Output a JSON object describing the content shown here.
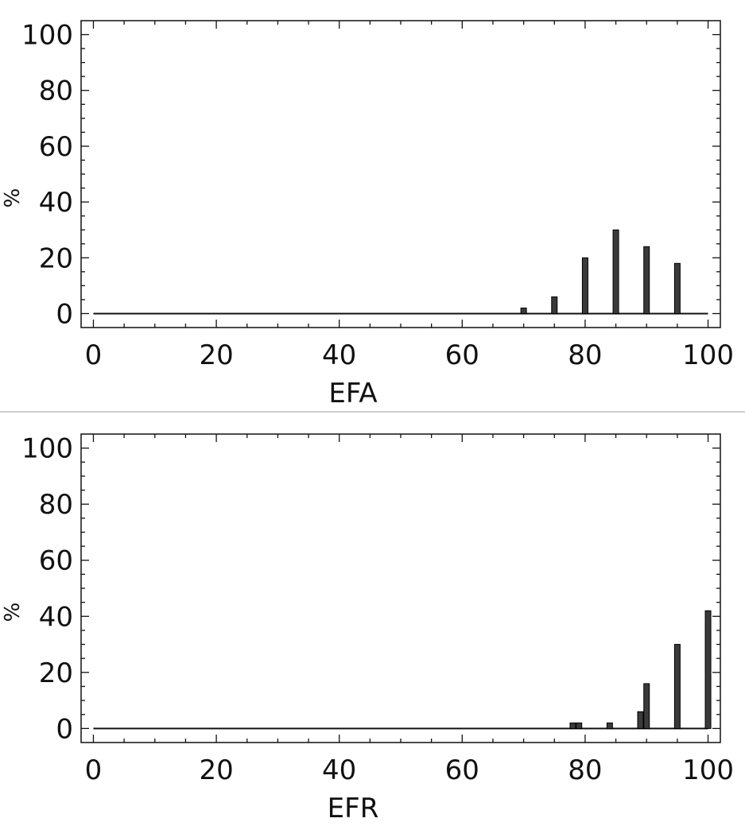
{
  "chart_data": [
    {
      "type": "bar",
      "xlabel": "EFA",
      "ylabel": "%",
      "xlim": [
        -2,
        102
      ],
      "ylim": [
        -5,
        105
      ],
      "xticks": [
        "0",
        "20",
        "40",
        "60",
        "80",
        "100"
      ],
      "yticks": [
        "0",
        "20",
        "40",
        "60",
        "80",
        "100"
      ],
      "grid": false,
      "bar_color": "#3a3a3a",
      "bars": [
        {
          "x": 70,
          "value": 2
        },
        {
          "x": 75,
          "value": 6
        },
        {
          "x": 80,
          "value": 20
        },
        {
          "x": 85,
          "value": 30
        },
        {
          "x": 90,
          "value": 24
        },
        {
          "x": 95,
          "value": 18
        }
      ]
    },
    {
      "type": "bar",
      "xlabel": "EFR",
      "ylabel": "%",
      "xlim": [
        -2,
        102
      ],
      "ylim": [
        -5,
        105
      ],
      "xticks": [
        "0",
        "20",
        "40",
        "60",
        "80",
        "100"
      ],
      "yticks": [
        "0",
        "20",
        "40",
        "60",
        "80",
        "100"
      ],
      "grid": false,
      "bar_color": "#3a3a3a",
      "bars": [
        {
          "x": 78,
          "value": 2
        },
        {
          "x": 79,
          "value": 2
        },
        {
          "x": 84,
          "value": 2
        },
        {
          "x": 89,
          "value": 6
        },
        {
          "x": 90,
          "value": 16
        },
        {
          "x": 95,
          "value": 30
        },
        {
          "x": 100,
          "value": 42
        }
      ]
    }
  ]
}
